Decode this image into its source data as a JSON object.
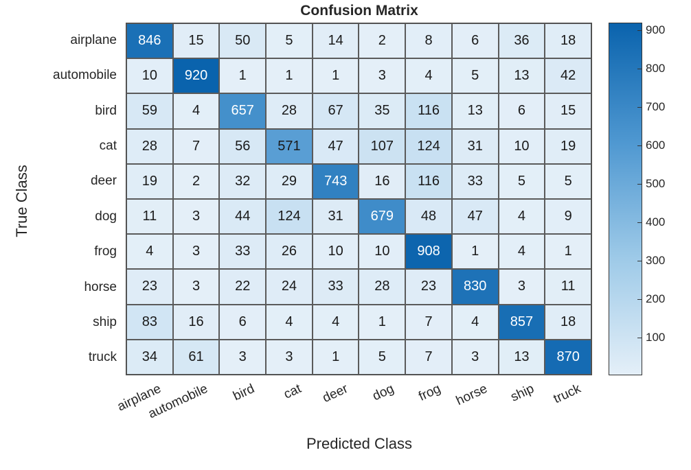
{
  "chart_data": {
    "type": "heatmap",
    "title": "Confusion Matrix",
    "xlabel": "Predicted Class",
    "ylabel": "True Class",
    "x_categories": [
      "airplane",
      "automobile",
      "bird",
      "cat",
      "deer",
      "dog",
      "frog",
      "horse",
      "ship",
      "truck"
    ],
    "y_categories": [
      "airplane",
      "automobile",
      "bird",
      "cat",
      "deer",
      "dog",
      "frog",
      "horse",
      "ship",
      "truck"
    ],
    "matrix": [
      [
        846,
        15,
        50,
        5,
        14,
        2,
        8,
        6,
        36,
        18
      ],
      [
        10,
        920,
        1,
        1,
        1,
        3,
        4,
        5,
        13,
        42
      ],
      [
        59,
        4,
        657,
        28,
        67,
        35,
        116,
        13,
        6,
        15
      ],
      [
        28,
        7,
        56,
        571,
        47,
        107,
        124,
        31,
        10,
        19
      ],
      [
        19,
        2,
        32,
        29,
        743,
        16,
        116,
        33,
        5,
        5
      ],
      [
        11,
        3,
        44,
        124,
        31,
        679,
        48,
        47,
        4,
        9
      ],
      [
        4,
        3,
        33,
        26,
        10,
        10,
        908,
        1,
        4,
        1
      ],
      [
        23,
        3,
        22,
        24,
        33,
        28,
        23,
        830,
        3,
        11
      ],
      [
        83,
        16,
        6,
        4,
        4,
        1,
        7,
        4,
        857,
        18
      ],
      [
        34,
        61,
        3,
        3,
        1,
        5,
        7,
        3,
        13,
        870
      ]
    ],
    "colorbar": {
      "ticks": [
        100,
        200,
        300,
        400,
        500,
        600,
        700,
        800,
        900
      ],
      "range": [
        1,
        920
      ],
      "colormap": "blues",
      "color_low": "#e4eff8",
      "color_high": "#0a63ad"
    }
  }
}
